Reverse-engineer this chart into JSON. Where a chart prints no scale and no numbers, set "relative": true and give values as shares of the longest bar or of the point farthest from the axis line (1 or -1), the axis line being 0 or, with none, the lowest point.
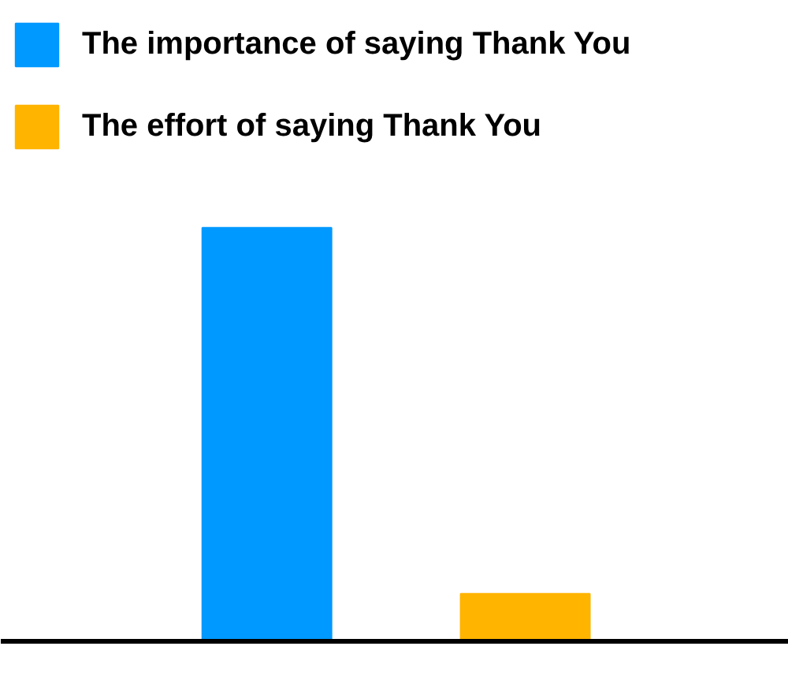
{
  "chart_data": {
    "type": "bar",
    "relative": true,
    "categories": [
      null,
      null
    ],
    "series": [
      {
        "name": "The importance of saying Thank You",
        "color": "#0099ff",
        "values": [
          1,
          null
        ]
      },
      {
        "name": "The effort of saying Thank You",
        "color": "#ffb400",
        "values": [
          null,
          0.115
        ]
      }
    ],
    "stacked": true,
    "legend": "top left"
  }
}
